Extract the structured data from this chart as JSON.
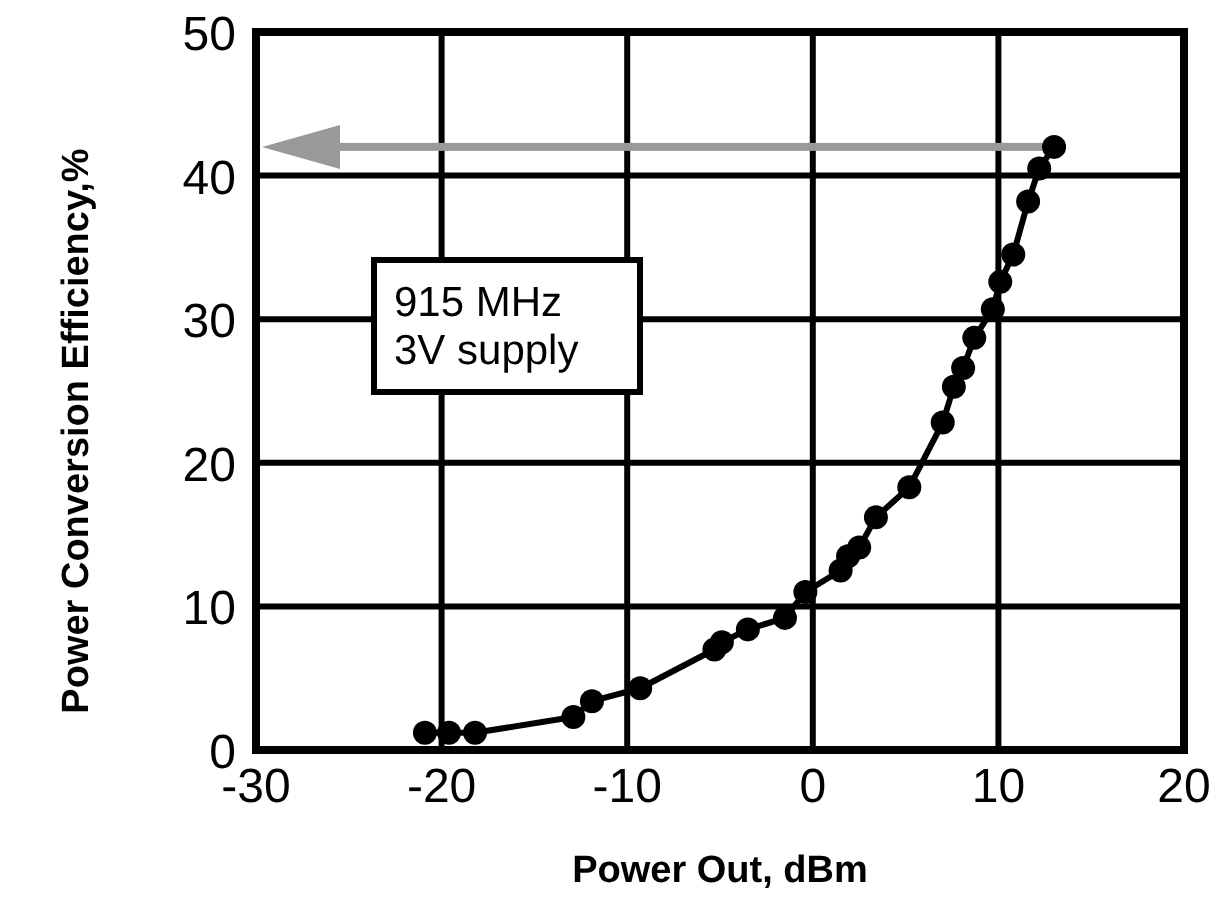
{
  "chart_data": {
    "type": "line",
    "xlabel": "Power Out, dBm",
    "ylabel": "Power Conversion Efficiency,%",
    "annotations": [
      "915 MHz\n3V supply"
    ],
    "x": [
      -20.9,
      -19.6,
      -18.2,
      -12.9,
      -11.9,
      -9.3,
      -5.3,
      -4.9,
      -3.5,
      -1.5,
      -0.4,
      1.5,
      1.9,
      2.5,
      3.4,
      5.2,
      7.0,
      7.6,
      8.1,
      8.7,
      9.7,
      10.1,
      10.8,
      11.6,
      12.2,
      13.0
    ],
    "series": [
      {
        "color": "#000000",
        "values": [
          1.2,
          1.2,
          1.2,
          2.3,
          3.4,
          4.3,
          7.0,
          7.5,
          8.4,
          9.2,
          11.0,
          12.5,
          13.5,
          14.1,
          16.2,
          18.3,
          22.8,
          25.3,
          26.6,
          28.7,
          30.7,
          32.6,
          34.5,
          38.2,
          40.5,
          42.0
        ]
      }
    ],
    "xlim": [
      -30,
      20
    ],
    "xticks": [
      -30,
      -20,
      -10,
      0,
      10,
      20
    ],
    "ylim": [
      0,
      50
    ],
    "yticks": [
      0,
      10,
      20,
      30,
      40,
      50
    ],
    "grid": true,
    "marker": "circle",
    "line_style": "solid"
  }
}
